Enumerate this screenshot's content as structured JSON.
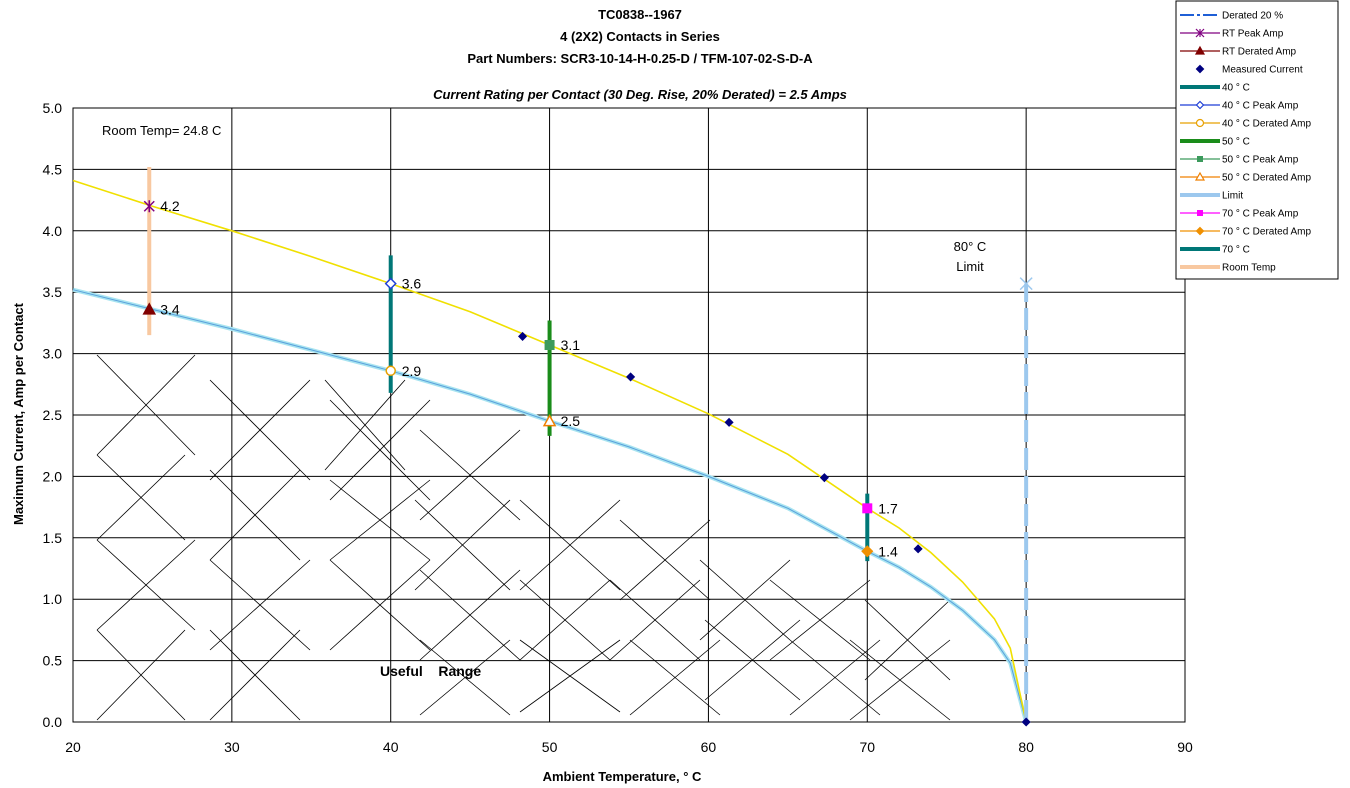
{
  "chart_data": {
    "type": "scatter",
    "title_lines": [
      "TC0838--1967",
      "4 (2X2) Contacts in Series",
      "Part Numbers: SCR3-10-14-H-0.25-D / TFM-107-02-S-D-A"
    ],
    "subtitle": "Current Rating per Contact (30 Deg. Rise, 20% Derated)  = 2.5 Amps",
    "xlabel": "Ambient Temperature,  ° C",
    "ylabel": "Maximum Current, Amp per Contact",
    "xlim": [
      20,
      90
    ],
    "ylim": [
      0.0,
      5.0
    ],
    "xticks": [
      20,
      30,
      40,
      50,
      60,
      70,
      80,
      90
    ],
    "yticks": [
      "0.0",
      "0.5",
      "1.0",
      "1.5",
      "2.0",
      "2.5",
      "3.0",
      "3.5",
      "4.0",
      "4.5",
      "5.0"
    ],
    "grid": true,
    "legend_position": "top-right",
    "annotations": {
      "room_temp": "Room Temp= 24.8 C",
      "limit_line1": "80° C",
      "limit_line2": "Limit",
      "useful_range": "Useful    Range"
    },
    "peak_curve": [
      [
        20,
        4.41
      ],
      [
        25,
        4.2
      ],
      [
        30,
        4.0
      ],
      [
        35,
        3.79
      ],
      [
        40,
        3.57
      ],
      [
        45,
        3.34
      ],
      [
        50,
        3.07
      ],
      [
        55,
        2.8
      ],
      [
        60,
        2.51
      ],
      [
        65,
        2.18
      ],
      [
        70,
        1.74
      ],
      [
        72,
        1.58
      ],
      [
        74,
        1.38
      ],
      [
        76,
        1.14
      ],
      [
        78,
        0.84
      ],
      [
        79,
        0.6
      ],
      [
        80,
        0.0
      ]
    ],
    "derated_curve": [
      [
        20,
        3.52
      ],
      [
        25,
        3.36
      ],
      [
        30,
        3.2
      ],
      [
        35,
        3.03
      ],
      [
        40,
        2.86
      ],
      [
        45,
        2.67
      ],
      [
        50,
        2.45
      ],
      [
        55,
        2.24
      ],
      [
        60,
        2.0
      ],
      [
        65,
        1.74
      ],
      [
        70,
        1.39
      ],
      [
        72,
        1.26
      ],
      [
        74,
        1.1
      ],
      [
        76,
        0.91
      ],
      [
        78,
        0.67
      ],
      [
        79,
        0.48
      ],
      [
        80,
        0.0
      ]
    ],
    "series": [
      {
        "name": "Derated 20 %",
        "color": "#1f5fd6",
        "kind": "line"
      },
      {
        "name": "RT Peak Amp",
        "color": "#800080",
        "kind": "marker",
        "marker": "star",
        "points": [
          [
            24.8,
            4.2
          ]
        ]
      },
      {
        "name": "RT Derated Amp",
        "color": "#800000",
        "kind": "marker",
        "marker": "triangle",
        "points": [
          [
            24.8,
            3.36
          ]
        ]
      },
      {
        "name": "Measured Current",
        "color": "#000080",
        "kind": "marker",
        "marker": "diamond",
        "points": [
          [
            48.3,
            3.14
          ],
          [
            55.1,
            2.81
          ],
          [
            61.3,
            2.44
          ],
          [
            67.3,
            1.99
          ],
          [
            73.2,
            1.41
          ],
          [
            80,
            0.0
          ]
        ]
      },
      {
        "name": "40 ° C",
        "color": "#007777",
        "kind": "vbar",
        "x": 40,
        "y": [
          2.68,
          3.8
        ]
      },
      {
        "name": "40  ° C Peak Amp",
        "color": "#1f3fd6",
        "kind": "marker",
        "marker": "diamond-open",
        "points": [
          [
            40,
            3.57
          ]
        ]
      },
      {
        "name": "40  ° C Derated Amp",
        "color": "#e8a000",
        "kind": "marker",
        "marker": "circle-open",
        "points": [
          [
            40,
            2.86
          ]
        ]
      },
      {
        "name": "50  ° C",
        "color": "#1a8c1a",
        "kind": "vbar",
        "x": 50,
        "y": [
          2.33,
          3.27
        ]
      },
      {
        "name": "50  ° C Peak Amp",
        "color": "#3c9a5c",
        "kind": "marker",
        "marker": "square",
        "points": [
          [
            50,
            3.07
          ]
        ]
      },
      {
        "name": "50  ° C Derated Amp",
        "color": "#f08000",
        "kind": "marker",
        "marker": "triangle-open",
        "points": [
          [
            50,
            2.45
          ]
        ]
      },
      {
        "name": "Limit",
        "color": "#9cc8ee",
        "kind": "vline",
        "x": 80,
        "y": [
          0.0,
          3.57
        ]
      },
      {
        "name": "70  ° C Peak Amp",
        "color": "#ff00ff",
        "kind": "marker",
        "marker": "square",
        "points": [
          [
            70,
            1.74
          ]
        ]
      },
      {
        "name": "70  ° C Derated Amp",
        "color": "#f09000",
        "kind": "marker",
        "marker": "diamond",
        "points": [
          [
            70,
            1.39
          ]
        ]
      },
      {
        "name": "70  ° C",
        "color": "#007777",
        "kind": "vbar",
        "x": 70,
        "y": [
          1.31,
          1.86
        ]
      },
      {
        "name": "Room Temp",
        "color": "#f8c8a0",
        "kind": "vbar",
        "x": 24.8,
        "y": [
          3.15,
          4.52
        ]
      }
    ],
    "data_labels": [
      {
        "x": 24.8,
        "y": 4.2,
        "text": "4.2"
      },
      {
        "x": 24.8,
        "y": 3.36,
        "text": "3.4"
      },
      {
        "x": 40,
        "y": 3.57,
        "text": "3.6"
      },
      {
        "x": 40,
        "y": 2.86,
        "text": "2.9"
      },
      {
        "x": 50,
        "y": 3.07,
        "text": "3.1"
      },
      {
        "x": 50,
        "y": 2.45,
        "text": "2.5"
      },
      {
        "x": 70,
        "y": 1.74,
        "text": "1.7"
      },
      {
        "x": 70,
        "y": 1.39,
        "text": "1.4"
      }
    ]
  }
}
